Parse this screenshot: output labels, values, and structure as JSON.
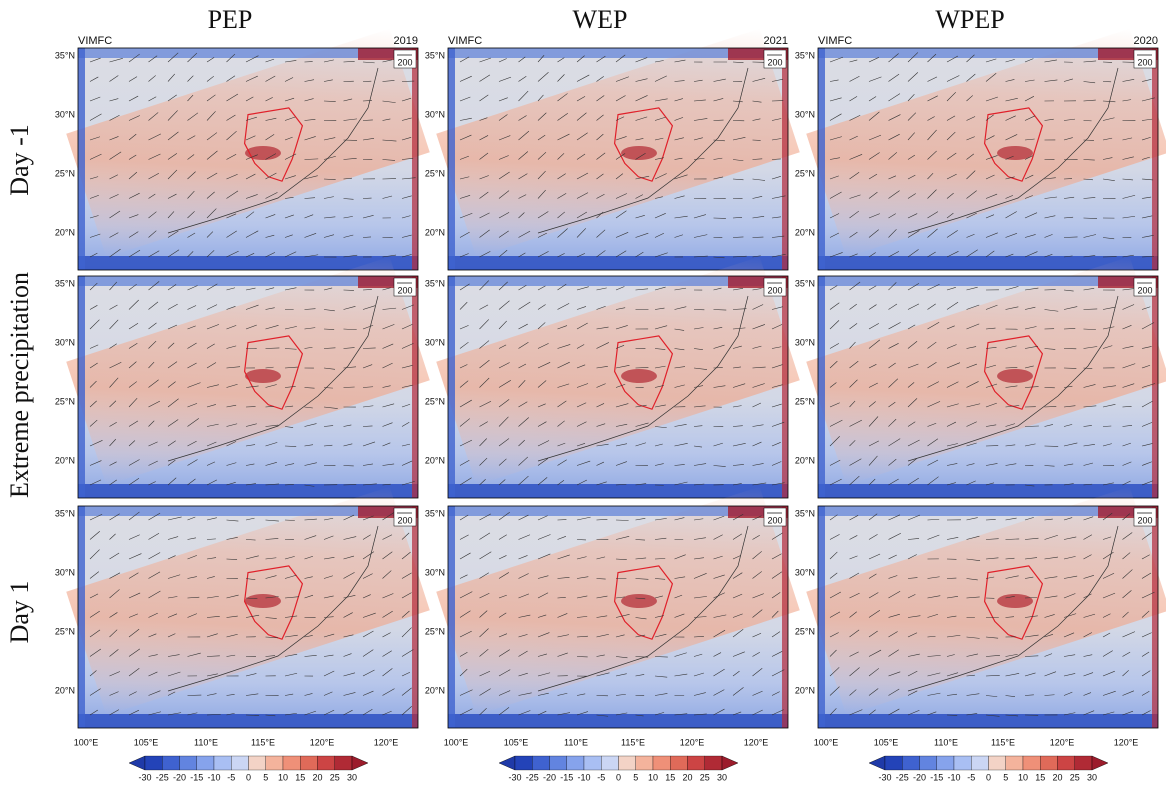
{
  "column_titles": [
    "PEP",
    "WEP",
    "WPEP"
  ],
  "row_labels": [
    "Day -1",
    "Extreme precipitation",
    "Day 1"
  ],
  "panel_label": "VIMFC",
  "years": [
    "2019",
    "2021",
    "2020"
  ],
  "reference_vector": "200",
  "lat_labels": [
    "35°N",
    "30°N",
    "25°N",
    "20°N"
  ],
  "lon_labels": [
    "100°E",
    "105°E",
    "110°E",
    "115°E",
    "120°E",
    "120°E"
  ],
  "colorbar_ticks": [
    -30,
    -25,
    -20,
    -15,
    -10,
    -5,
    0,
    5,
    10,
    15,
    20,
    25,
    30
  ]
}
